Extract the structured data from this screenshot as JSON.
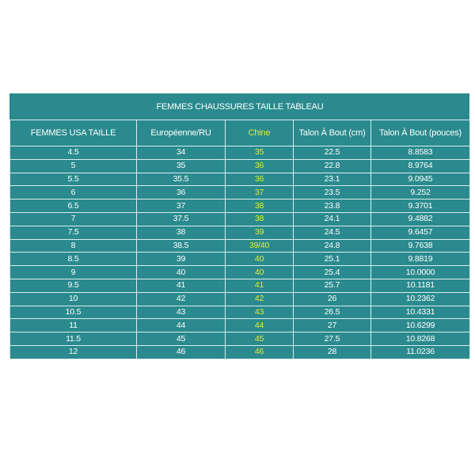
{
  "table": {
    "title": "FEMMES CHAUSSURES TAILLE TABLEAU",
    "headers": [
      "FEMMES USA TAILLE",
      "Européenne/RU",
      "Chine",
      "Talon À Bout (cm)",
      "Talon À Bout (pouces)"
    ],
    "rows": [
      [
        "4.5",
        "34",
        "35",
        "22.5",
        "8.8583"
      ],
      [
        "5",
        "35",
        "36",
        "22.8",
        "8.9764"
      ],
      [
        "5.5",
        "35.5",
        "36",
        "23.1",
        "9.0945"
      ],
      [
        "6",
        "36",
        "37",
        "23.5",
        "9.252"
      ],
      [
        "6.5",
        "37",
        "38",
        "23.8",
        "9.3701"
      ],
      [
        "7",
        "37.5",
        "38",
        "24.1",
        "9.4882"
      ],
      [
        "7.5",
        "38",
        "39",
        "24.5",
        "9.6457"
      ],
      [
        "8",
        "38.5",
        "39/40",
        "24.8",
        "9.7638"
      ],
      [
        "8.5",
        "39",
        "40",
        "25.1",
        "9.8819"
      ],
      [
        "9",
        "40",
        "40",
        "25.4",
        "10.0000"
      ],
      [
        "9.5",
        "41",
        "41",
        "25.7",
        "10.1181"
      ],
      [
        "10",
        "42",
        "42",
        "26",
        "10.2362"
      ],
      [
        "10.5",
        "43",
        "43",
        "26.5",
        "10.4331"
      ],
      [
        "11",
        "44",
        "44",
        "27",
        "10.6299"
      ],
      [
        "11.5",
        "45",
        "45",
        "27.5",
        "10.8268"
      ],
      [
        "12",
        "46",
        "46",
        "28",
        "11.0236"
      ]
    ]
  }
}
